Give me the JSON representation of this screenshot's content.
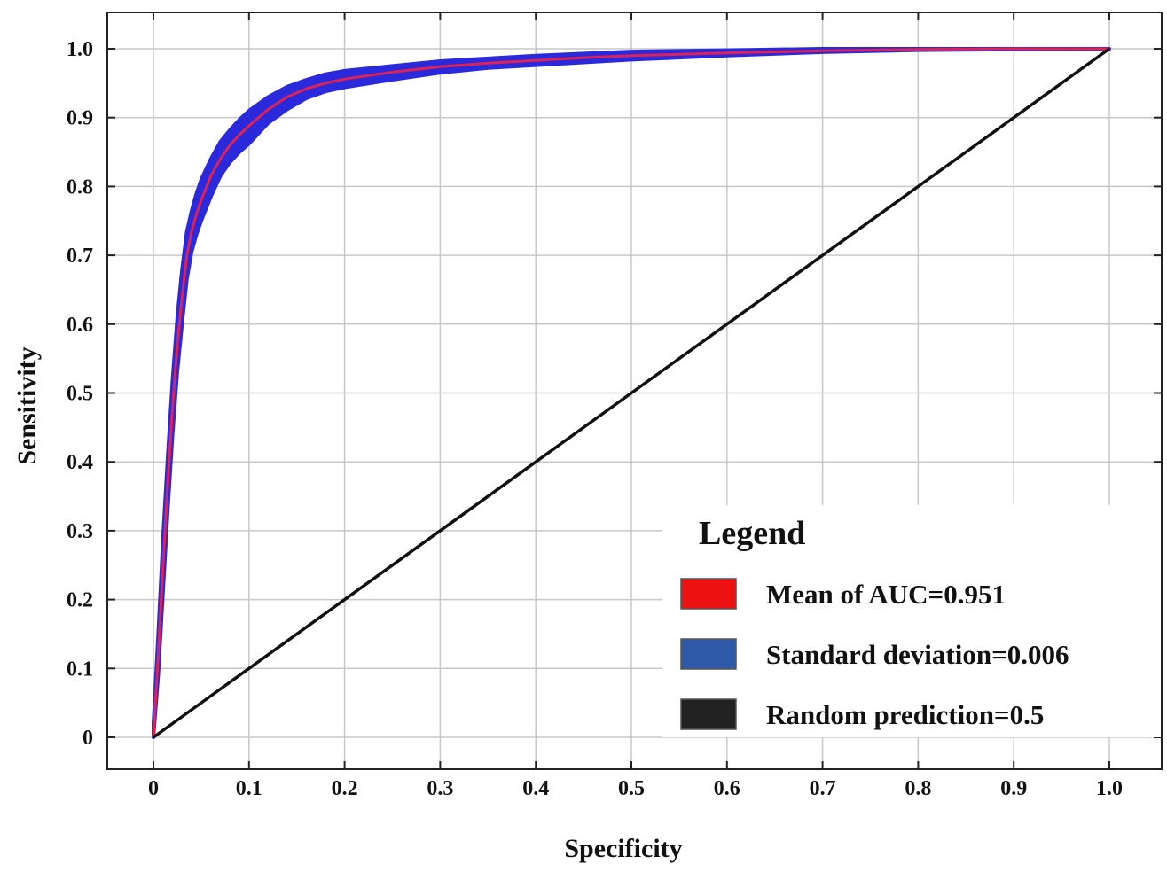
{
  "chart_data": {
    "type": "line",
    "xlabel": "Specificity",
    "ylabel": "Sensitivity",
    "xlim": [
      0,
      1.0
    ],
    "ylim": [
      0,
      1.0
    ],
    "x_ticks": [
      "0",
      "0.1",
      "0.2",
      "0.3",
      "0.4",
      "0.5",
      "0.6",
      "0.7",
      "0.8",
      "0.9",
      "1.0"
    ],
    "y_ticks": [
      "0",
      "0.1",
      "0.2",
      "0.3",
      "0.4",
      "0.5",
      "0.6",
      "0.7",
      "0.8",
      "0.9",
      "1.0"
    ],
    "grid": true,
    "legend": {
      "title": "Legend",
      "placement": "bottom-right",
      "entries": [
        {
          "label": "Mean of AUC=0.951",
          "color": "#ee1111"
        },
        {
          "label": "Standard deviation=0.006",
          "color": "#2e58a8"
        },
        {
          "label": "Random prediction=0.5",
          "color": "#222222"
        }
      ]
    },
    "series": [
      {
        "role": "mean",
        "color": "#dd2255",
        "x": [
          0,
          0.005,
          0.01,
          0.015,
          0.02,
          0.025,
          0.03,
          0.035,
          0.04,
          0.045,
          0.05,
          0.06,
          0.07,
          0.08,
          0.09,
          0.1,
          0.12,
          0.14,
          0.16,
          0.18,
          0.2,
          0.25,
          0.3,
          0.35,
          0.4,
          0.45,
          0.5,
          0.6,
          0.7,
          0.8,
          0.9,
          1.0
        ],
        "y": [
          0,
          0.12,
          0.25,
          0.37,
          0.48,
          0.57,
          0.64,
          0.7,
          0.735,
          0.76,
          0.78,
          0.815,
          0.84,
          0.86,
          0.875,
          0.888,
          0.912,
          0.93,
          0.942,
          0.95,
          0.956,
          0.966,
          0.974,
          0.979,
          0.983,
          0.987,
          0.99,
          0.994,
          0.997,
          0.999,
          1.0,
          1.0
        ]
      },
      {
        "role": "std_band",
        "color": "#2a2adc",
        "x": [
          0,
          0.005,
          0.01,
          0.015,
          0.02,
          0.025,
          0.03,
          0.035,
          0.04,
          0.045,
          0.05,
          0.06,
          0.07,
          0.08,
          0.09,
          0.1,
          0.12,
          0.14,
          0.16,
          0.18,
          0.2,
          0.25,
          0.3,
          0.35,
          0.4,
          0.45,
          0.5,
          0.6,
          0.7,
          0.8,
          0.9,
          1.0
        ],
        "upper": [
          0.02,
          0.15,
          0.29,
          0.41,
          0.52,
          0.61,
          0.68,
          0.735,
          0.765,
          0.79,
          0.81,
          0.84,
          0.865,
          0.882,
          0.897,
          0.91,
          0.93,
          0.945,
          0.955,
          0.963,
          0.968,
          0.975,
          0.982,
          0.986,
          0.99,
          0.993,
          0.996,
          0.998,
          1.0,
          1.0,
          1.0,
          1.0
        ],
        "lower": [
          0,
          0.09,
          0.21,
          0.33,
          0.44,
          0.53,
          0.6,
          0.665,
          0.705,
          0.73,
          0.75,
          0.785,
          0.815,
          0.835,
          0.85,
          0.862,
          0.892,
          0.912,
          0.928,
          0.938,
          0.944,
          0.955,
          0.965,
          0.972,
          0.976,
          0.98,
          0.984,
          0.99,
          0.995,
          0.998,
          0.999,
          1.0
        ]
      },
      {
        "role": "random",
        "color": "#111111",
        "x": [
          0,
          1.0
        ],
        "y": [
          0,
          1.0
        ]
      }
    ]
  }
}
